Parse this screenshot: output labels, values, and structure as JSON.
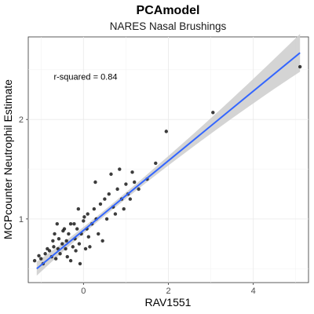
{
  "chart_data": {
    "type": "scatter",
    "title": "PCAmodel",
    "subtitle": "NARES Nasal Brushings",
    "xlabel": "RAV1551",
    "ylabel": "MCPcounter Neutrophil Estimate",
    "xlim": [
      -1.3,
      5.3
    ],
    "ylim": [
      0.36,
      2.83
    ],
    "x_ticks": [
      0,
      2,
      4
    ],
    "y_ticks": [
      1,
      2
    ],
    "x_tick_labels": [
      "0",
      "2",
      "4"
    ],
    "y_tick_labels": [
      "1",
      "2"
    ],
    "grid": true,
    "annotation": "r-squared = 0.84",
    "annotation_pos": {
      "x": -0.7,
      "y": 2.4
    },
    "fit": {
      "x": [
        -1.1,
        5.1
      ],
      "y": [
        0.5,
        2.67
      ],
      "band_lower": [
        0.43,
        2.48
      ],
      "band_upper": [
        0.57,
        2.86
      ]
    },
    "points": [
      {
        "x": -1.15,
        "y": 0.58
      },
      {
        "x": -1.05,
        "y": 0.63
      },
      {
        "x": -1.0,
        "y": 0.6
      },
      {
        "x": -0.95,
        "y": 0.55
      },
      {
        "x": -0.9,
        "y": 0.65
      },
      {
        "x": -0.85,
        "y": 0.7
      },
      {
        "x": -0.8,
        "y": 0.68
      },
      {
        "x": -0.75,
        "y": 0.62
      },
      {
        "x": -0.72,
        "y": 0.78
      },
      {
        "x": -0.7,
        "y": 0.72
      },
      {
        "x": -0.68,
        "y": 0.85
      },
      {
        "x": -0.65,
        "y": 0.6
      },
      {
        "x": -0.6,
        "y": 0.7
      },
      {
        "x": -0.58,
        "y": 0.8
      },
      {
        "x": -0.55,
        "y": 0.65
      },
      {
        "x": -0.5,
        "y": 0.75
      },
      {
        "x": -0.48,
        "y": 0.88
      },
      {
        "x": -0.45,
        "y": 0.9
      },
      {
        "x": -0.42,
        "y": 0.7
      },
      {
        "x": -0.4,
        "y": 0.78
      },
      {
        "x": -0.38,
        "y": 0.62
      },
      {
        "x": -0.35,
        "y": 0.85
      },
      {
        "x": -0.3,
        "y": 0.58
      },
      {
        "x": -0.25,
        "y": 0.72
      },
      {
        "x": -0.22,
        "y": 0.95
      },
      {
        "x": -0.2,
        "y": 0.8
      },
      {
        "x": -0.18,
        "y": 0.68
      },
      {
        "x": -0.15,
        "y": 0.9
      },
      {
        "x": -0.12,
        "y": 1.1
      },
      {
        "x": -0.1,
        "y": 0.75
      },
      {
        "x": -0.08,
        "y": 0.55
      },
      {
        "x": -0.05,
        "y": 0.85
      },
      {
        "x": 0.0,
        "y": 0.98
      },
      {
        "x": 0.02,
        "y": 1.02
      },
      {
        "x": 0.05,
        "y": 0.7
      },
      {
        "x": 0.08,
        "y": 0.9
      },
      {
        "x": 0.1,
        "y": 1.05
      },
      {
        "x": 0.15,
        "y": 0.72
      },
      {
        "x": 0.2,
        "y": 0.95
      },
      {
        "x": 0.25,
        "y": 1.1
      },
      {
        "x": 0.28,
        "y": 1.37
      },
      {
        "x": 0.3,
        "y": 1.0
      },
      {
        "x": 0.35,
        "y": 0.85
      },
      {
        "x": 0.4,
        "y": 1.15
      },
      {
        "x": 0.45,
        "y": 0.78
      },
      {
        "x": 0.5,
        "y": 1.2
      },
      {
        "x": 0.55,
        "y": 1.0
      },
      {
        "x": 0.6,
        "y": 1.25
      },
      {
        "x": 0.65,
        "y": 1.45
      },
      {
        "x": 0.7,
        "y": 1.12
      },
      {
        "x": 0.75,
        "y": 1.05
      },
      {
        "x": 0.8,
        "y": 1.3
      },
      {
        "x": 0.85,
        "y": 1.5
      },
      {
        "x": 0.9,
        "y": 1.2
      },
      {
        "x": 0.95,
        "y": 1.1
      },
      {
        "x": 1.0,
        "y": 1.35
      },
      {
        "x": 1.05,
        "y": 1.25
      },
      {
        "x": 1.1,
        "y": 1.2
      },
      {
        "x": 1.15,
        "y": 1.47
      },
      {
        "x": 1.2,
        "y": 1.37
      },
      {
        "x": 1.3,
        "y": 1.3
      },
      {
        "x": 1.5,
        "y": 1.4
      },
      {
        "x": 1.7,
        "y": 1.56
      },
      {
        "x": 1.95,
        "y": 1.88
      },
      {
        "x": 3.05,
        "y": 2.07
      },
      {
        "x": 5.1,
        "y": 2.53
      },
      {
        "x": -0.3,
        "y": 0.95
      },
      {
        "x": 0.12,
        "y": 0.82
      },
      {
        "x": -0.62,
        "y": 0.95
      }
    ]
  }
}
